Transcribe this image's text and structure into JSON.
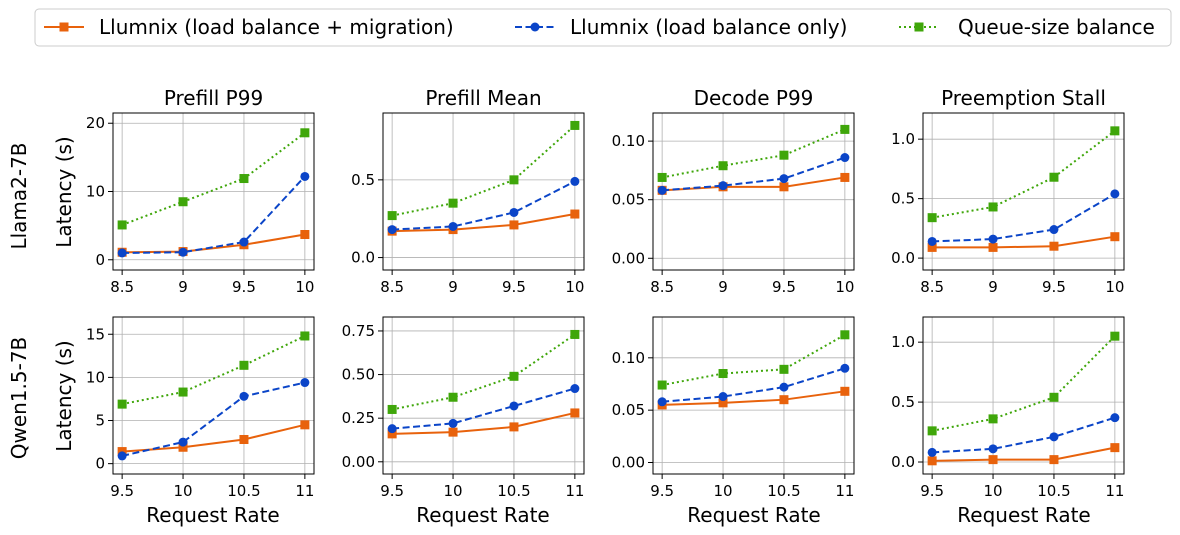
{
  "legend": [
    {
      "label": "Llumnix (load balance + migration)",
      "color": "#e8620c",
      "marker": "square",
      "dash": "solid"
    },
    {
      "label": "Llumnix (load balance only)",
      "color": "#0b45c8",
      "marker": "circle",
      "dash": "dashed"
    },
    {
      "label": "Queue-size balance",
      "color": "#3fa60a",
      "marker": "square",
      "dash": "dotted"
    }
  ],
  "row_labels": [
    "Llama2-7B",
    "Qwen1.5-7B"
  ],
  "column_titles": [
    "Prefill P99",
    "Prefill Mean",
    "Decode P99",
    "Preemption Stall"
  ],
  "ylabel": "Latency (s)",
  "xlabel": "Request Rate",
  "chart_data": [
    {
      "type": "line",
      "title": "Prefill P99",
      "model": "Llama2-7B",
      "x": [
        8.5,
        9,
        9.5,
        10
      ],
      "xticks": [
        "8.5",
        "9",
        "9.5",
        "10"
      ],
      "ylim": [
        -1.5,
        21.5
      ],
      "yticks": [
        0,
        10,
        20
      ],
      "ytick_labels": [
        "0",
        "10",
        "20"
      ],
      "series": [
        {
          "name": "Llumnix (load balance + migration)",
          "values": [
            1.1,
            1.2,
            2.2,
            3.7
          ]
        },
        {
          "name": "Llumnix (load balance only)",
          "values": [
            1.0,
            1.1,
            2.6,
            12.2
          ]
        },
        {
          "name": "Queue-size balance",
          "values": [
            5.1,
            8.5,
            11.9,
            18.6
          ]
        }
      ]
    },
    {
      "type": "line",
      "title": "Prefill Mean",
      "model": "Llama2-7B",
      "x": [
        8.5,
        9,
        9.5,
        10
      ],
      "xticks": [
        "8.5",
        "9",
        "9.5",
        "10"
      ],
      "ylim": [
        -0.08,
        0.93
      ],
      "yticks": [
        0,
        0.5
      ],
      "ytick_labels": [
        "0.0",
        "0.5"
      ],
      "series": [
        {
          "name": "Llumnix (load balance + migration)",
          "values": [
            0.17,
            0.18,
            0.21,
            0.28
          ]
        },
        {
          "name": "Llumnix (load balance only)",
          "values": [
            0.18,
            0.2,
            0.29,
            0.49
          ]
        },
        {
          "name": "Queue-size balance",
          "values": [
            0.27,
            0.35,
            0.5,
            0.85
          ]
        }
      ]
    },
    {
      "type": "line",
      "title": "Decode P99",
      "model": "Llama2-7B",
      "x": [
        8.5,
        9,
        9.5,
        10
      ],
      "xticks": [
        "8.5",
        "9",
        "9.5",
        "10"
      ],
      "ylim": [
        -0.01,
        0.124
      ],
      "yticks": [
        0,
        0.05,
        0.1
      ],
      "ytick_labels": [
        "0.00",
        "0.05",
        "0.10"
      ],
      "series": [
        {
          "name": "Llumnix (load balance + migration)",
          "values": [
            0.058,
            0.061,
            0.061,
            0.069
          ]
        },
        {
          "name": "Llumnix (load balance only)",
          "values": [
            0.058,
            0.062,
            0.068,
            0.086
          ]
        },
        {
          "name": "Queue-size balance",
          "values": [
            0.069,
            0.079,
            0.088,
            0.11
          ]
        }
      ]
    },
    {
      "type": "line",
      "title": "Preemption Stall",
      "model": "Llama2-7B",
      "x": [
        8.5,
        9,
        9.5,
        10
      ],
      "xticks": [
        "8.5",
        "9",
        "9.5",
        "10"
      ],
      "ylim": [
        -0.1,
        1.22
      ],
      "yticks": [
        0,
        0.5,
        1.0
      ],
      "ytick_labels": [
        "0.0",
        "0.5",
        "1.0"
      ],
      "series": [
        {
          "name": "Llumnix (load balance + migration)",
          "values": [
            0.09,
            0.09,
            0.1,
            0.18
          ]
        },
        {
          "name": "Llumnix (load balance only)",
          "values": [
            0.14,
            0.16,
            0.24,
            0.54
          ]
        },
        {
          "name": "Queue-size balance",
          "values": [
            0.34,
            0.43,
            0.68,
            1.07
          ]
        }
      ]
    },
    {
      "type": "line",
      "title": "",
      "model": "Qwen1.5-7B",
      "x": [
        9.5,
        10,
        10.5,
        11
      ],
      "xticks": [
        "9.5",
        "10",
        "10.5",
        "11"
      ],
      "ylim": [
        -1.2,
        17.0
      ],
      "yticks": [
        0,
        5,
        10,
        15
      ],
      "ytick_labels": [
        "0",
        "5",
        "10",
        "15"
      ],
      "series": [
        {
          "name": "Llumnix (load balance + migration)",
          "values": [
            1.4,
            1.9,
            2.8,
            4.5
          ]
        },
        {
          "name": "Llumnix (load balance only)",
          "values": [
            0.9,
            2.5,
            7.8,
            9.4
          ]
        },
        {
          "name": "Queue-size balance",
          "values": [
            6.9,
            8.3,
            11.4,
            14.8
          ]
        }
      ]
    },
    {
      "type": "line",
      "title": "",
      "model": "Qwen1.5-7B",
      "x": [
        9.5,
        10,
        10.5,
        11
      ],
      "xticks": [
        "9.5",
        "10",
        "10.5",
        "11"
      ],
      "ylim": [
        -0.07,
        0.83
      ],
      "yticks": [
        0,
        0.25,
        0.5,
        0.75
      ],
      "ytick_labels": [
        "0.00",
        "0.25",
        "0.50",
        "0.75"
      ],
      "series": [
        {
          "name": "Llumnix (load balance + migration)",
          "values": [
            0.16,
            0.17,
            0.2,
            0.28
          ]
        },
        {
          "name": "Llumnix (load balance only)",
          "values": [
            0.19,
            0.22,
            0.32,
            0.42
          ]
        },
        {
          "name": "Queue-size balance",
          "values": [
            0.3,
            0.37,
            0.49,
            0.73
          ]
        }
      ]
    },
    {
      "type": "line",
      "title": "",
      "model": "Qwen1.5-7B",
      "x": [
        9.5,
        10,
        10.5,
        11
      ],
      "xticks": [
        "9.5",
        "10",
        "10.5",
        "11"
      ],
      "ylim": [
        -0.011,
        0.139
      ],
      "yticks": [
        0,
        0.05,
        0.1
      ],
      "ytick_labels": [
        "0.00",
        "0.05",
        "0.10"
      ],
      "series": [
        {
          "name": "Llumnix (load balance + migration)",
          "values": [
            0.055,
            0.057,
            0.06,
            0.068
          ]
        },
        {
          "name": "Llumnix (load balance only)",
          "values": [
            0.058,
            0.063,
            0.072,
            0.09
          ]
        },
        {
          "name": "Queue-size balance",
          "values": [
            0.074,
            0.085,
            0.089,
            0.122
          ]
        }
      ]
    },
    {
      "type": "line",
      "title": "",
      "model": "Qwen1.5-7B",
      "x": [
        9.5,
        10,
        10.5,
        11
      ],
      "xticks": [
        "9.5",
        "10",
        "10.5",
        "11"
      ],
      "ylim": [
        -0.1,
        1.21
      ],
      "yticks": [
        0,
        0.5,
        1.0
      ],
      "ytick_labels": [
        "0.0",
        "0.5",
        "1.0"
      ],
      "series": [
        {
          "name": "Llumnix (load balance + migration)",
          "values": [
            0.01,
            0.02,
            0.02,
            0.12
          ]
        },
        {
          "name": "Llumnix (load balance only)",
          "values": [
            0.08,
            0.11,
            0.21,
            0.37
          ]
        },
        {
          "name": "Queue-size balance",
          "values": [
            0.26,
            0.36,
            0.54,
            1.05
          ]
        }
      ]
    }
  ]
}
